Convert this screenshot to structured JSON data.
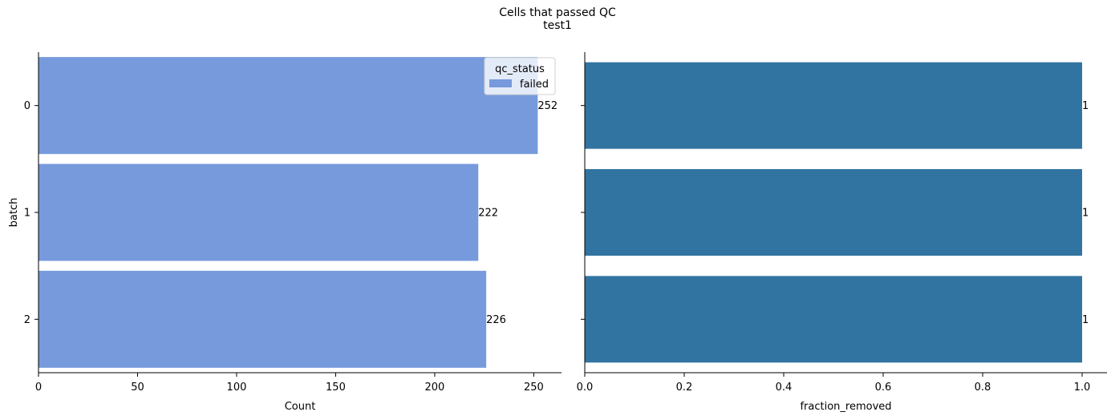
{
  "figure": {
    "title": "Cells that passed QC",
    "subtitle": "test1"
  },
  "chart_data": [
    {
      "type": "bar",
      "orientation": "horizontal",
      "categories": [
        "0",
        "1",
        "2"
      ],
      "values": [
        252,
        222,
        226
      ],
      "data_labels": [
        "252",
        "222",
        "226"
      ],
      "xlabel": "Count",
      "ylabel": "batch",
      "xlim": [
        0,
        264
      ],
      "xticks": [
        0,
        50,
        100,
        150,
        200,
        250
      ],
      "xtick_labels": [
        "0",
        "50",
        "100",
        "150",
        "200",
        "250"
      ],
      "color": "#779ADD",
      "grid": false,
      "legend": {
        "title": "qc_status",
        "entries": [
          {
            "label": "failed",
            "color": "#779ADD"
          }
        ],
        "placement": "top-right"
      }
    },
    {
      "type": "bar",
      "orientation": "horizontal",
      "categories": [
        "0",
        "1",
        "2"
      ],
      "values": [
        1,
        1,
        1
      ],
      "data_labels": [
        "1",
        "1",
        "1"
      ],
      "xlabel": "fraction_removed",
      "ylabel": "",
      "xlim": [
        0,
        1.05
      ],
      "xticks": [
        0,
        0.2,
        0.4,
        0.6,
        0.8,
        1.0
      ],
      "xtick_labels": [
        "0.0",
        "0.2",
        "0.4",
        "0.6",
        "0.8",
        "1.0"
      ],
      "color": "#3274A1",
      "grid": false
    }
  ]
}
